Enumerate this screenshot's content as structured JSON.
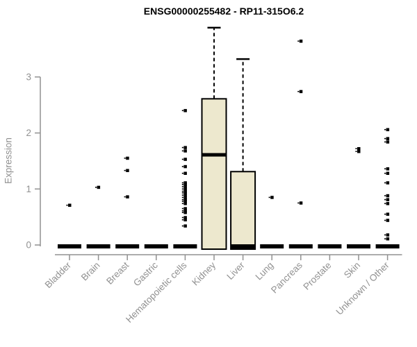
{
  "chart_data": {
    "type": "boxplot",
    "title": "ENSG00000255482 - RP11-315O6.2",
    "xlabel": "",
    "ylabel": "Expression",
    "ylim": [
      0,
      3.95
    ],
    "yticks": [
      0,
      1,
      2,
      3
    ],
    "grid": false,
    "legend": "none",
    "categories": [
      "Bladder",
      "Brain",
      "Breast",
      "Gastric",
      "Hematopoietic cells",
      "Kidney",
      "Liver",
      "Lung",
      "Pancreas",
      "Prostate",
      "Skin",
      "Unknown / Other"
    ],
    "boxes": [
      {
        "category": "Bladder",
        "q1": 0,
        "median": 0,
        "q3": 0,
        "whisker_low": 0,
        "whisker_high": 0,
        "outliers": [
          0.71
        ]
      },
      {
        "category": "Brain",
        "q1": 0,
        "median": 0,
        "q3": 0,
        "whisker_low": 0,
        "whisker_high": 0,
        "outliers": [
          1.03
        ]
      },
      {
        "category": "Breast",
        "q1": 0,
        "median": 0,
        "q3": 0,
        "whisker_low": 0,
        "whisker_high": 0,
        "outliers": [
          1.55,
          1.33,
          0.86
        ]
      },
      {
        "category": "Gastric",
        "q1": 0,
        "median": 0,
        "q3": 0,
        "whisker_low": 0,
        "whisker_high": 0,
        "outliers": []
      },
      {
        "category": "Hematopoietic cells",
        "q1": 0,
        "median": 0,
        "q3": 0,
        "whisker_low": 0,
        "whisker_high": 0,
        "outliers": [
          2.4,
          1.74,
          1.68,
          1.53,
          1.4,
          1.28,
          1.11,
          1.08,
          1.04,
          1.0,
          0.96,
          0.93,
          0.89,
          0.85,
          0.81,
          0.78,
          0.74,
          0.65,
          0.61,
          0.58,
          0.49,
          0.45,
          0.34
        ]
      },
      {
        "category": "Kidney",
        "q1": 0,
        "median": 1.61,
        "q3": 2.61,
        "whisker_low": 0,
        "whisker_high": 3.88,
        "outliers": []
      },
      {
        "category": "Liver",
        "q1": 0,
        "median": 0,
        "q3": 1.31,
        "whisker_low": 0,
        "whisker_high": 3.32,
        "outliers": []
      },
      {
        "category": "Lung",
        "q1": 0,
        "median": 0,
        "q3": 0,
        "whisker_low": 0,
        "whisker_high": 0,
        "outliers": [
          0.85
        ]
      },
      {
        "category": "Pancreas",
        "q1": 0,
        "median": 0,
        "q3": 0,
        "whisker_low": 0,
        "whisker_high": 0,
        "outliers": [
          3.64,
          2.74,
          0.75
        ]
      },
      {
        "category": "Prostate",
        "q1": 0,
        "median": 0,
        "q3": 0,
        "whisker_low": 0,
        "whisker_high": 0,
        "outliers": []
      },
      {
        "category": "Skin",
        "q1": 0,
        "median": 0,
        "q3": 0,
        "whisker_low": 0,
        "whisker_high": 0,
        "outliers": [
          1.72,
          1.67
        ]
      },
      {
        "category": "Unknown / Other",
        "q1": 0,
        "median": 0,
        "q3": 0,
        "whisker_low": 0,
        "whisker_high": 0,
        "outliers": [
          2.06,
          1.9,
          1.84,
          1.36,
          1.28,
          1.11,
          0.88,
          0.81,
          0.74,
          0.55,
          0.44,
          0.18,
          0.11
        ]
      }
    ],
    "colors": {
      "box_fill": "#EDE8CE",
      "box_border": "#000000",
      "median": "#000000",
      "outlier": "#000000",
      "axis": "#919191",
      "tick_label": "#919191",
      "title": "#000000"
    }
  }
}
